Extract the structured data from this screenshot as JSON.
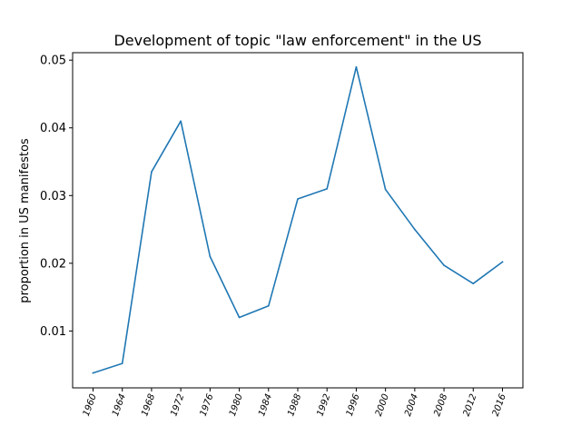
{
  "chart_data": {
    "type": "line",
    "title": "Development of topic \"law enforcement\" in the US",
    "xlabel": "",
    "ylabel": "proportion in US manifestos",
    "categories": [
      "1960",
      "1964",
      "1968",
      "1972",
      "1976",
      "1980",
      "1984",
      "1988",
      "1992",
      "1996",
      "2000",
      "2004",
      "2008",
      "2012",
      "2016"
    ],
    "series": [
      {
        "values": [
          0.0038,
          0.0052,
          0.0335,
          0.041,
          0.021,
          0.012,
          0.0137,
          0.0295,
          0.031,
          0.049,
          0.0309,
          0.025,
          0.0197,
          0.017,
          0.0202
        ]
      }
    ],
    "yticks": [
      "0.01",
      "0.02",
      "0.03",
      "0.04",
      "0.05"
    ],
    "ylim": [
      0.0016,
      0.0511
    ],
    "grid": false,
    "legend": "none",
    "colors": {
      "line": "#1f77b4",
      "axes": "#000000",
      "background": "#ffffff"
    }
  }
}
